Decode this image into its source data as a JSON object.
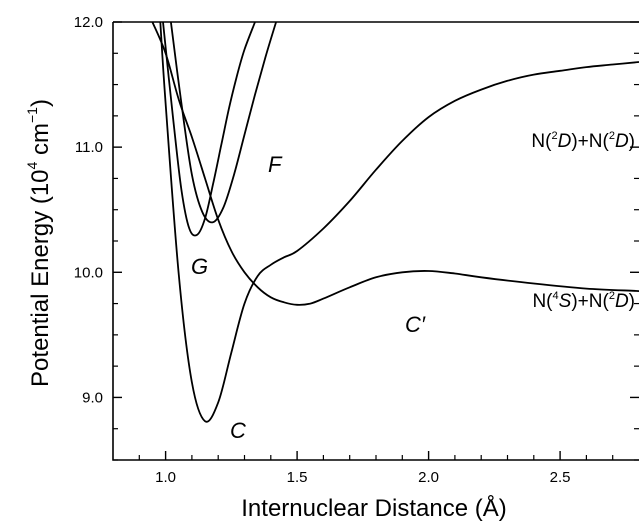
{
  "chart_data": {
    "type": "line",
    "title": "",
    "xlabel": "Internuclear Distance (Å)",
    "ylabel": "Potential Energy (10⁴ cm⁻¹)",
    "xlim": [
      0.8,
      2.8
    ],
    "ylim": [
      8.5,
      12.0
    ],
    "x_ticks": [
      "1.0",
      "1.5",
      "2.0",
      "2.5"
    ],
    "y_ticks": [
      "9.0",
      "10.0",
      "11.0",
      "12.0"
    ],
    "grid": false,
    "legend": "none",
    "series": [
      {
        "name": "C",
        "x": [
          0.98,
          1.0,
          1.05,
          1.1,
          1.15,
          1.2,
          1.25,
          1.3,
          1.35,
          1.4,
          1.45,
          1.5,
          1.6,
          1.7,
          1.8,
          1.9,
          2.0,
          2.1,
          2.2,
          2.3,
          2.4,
          2.5,
          2.6,
          2.7,
          2.8
        ],
        "y": [
          12.0,
          11.35,
          9.98,
          9.12,
          8.81,
          8.96,
          9.36,
          9.75,
          9.97,
          10.06,
          10.12,
          10.17,
          10.35,
          10.57,
          10.82,
          11.05,
          11.24,
          11.37,
          11.46,
          11.53,
          11.58,
          11.61,
          11.64,
          11.66,
          11.68
        ]
      },
      {
        "name": "C′",
        "x": [
          0.95,
          1.0,
          1.05,
          1.1,
          1.15,
          1.2,
          1.25,
          1.3,
          1.35,
          1.4,
          1.45,
          1.5,
          1.55,
          1.6,
          1.7,
          1.8,
          1.9,
          2.0,
          2.1,
          2.2,
          2.4,
          2.6,
          2.8
        ],
        "y": [
          12.0,
          11.75,
          11.38,
          11.08,
          10.75,
          10.42,
          10.17,
          10.0,
          9.88,
          9.8,
          9.76,
          9.74,
          9.75,
          9.79,
          9.88,
          9.96,
          10.0,
          10.01,
          9.99,
          9.96,
          9.91,
          9.87,
          9.85
        ]
      },
      {
        "name": "G",
        "x": [
          0.99,
          1.03,
          1.06,
          1.09,
          1.12,
          1.15,
          1.18,
          1.21,
          1.24,
          1.27,
          1.3,
          1.34
        ],
        "y": [
          12.0,
          11.2,
          10.66,
          10.35,
          10.3,
          10.43,
          10.7,
          11.0,
          11.3,
          11.56,
          11.78,
          12.0
        ]
      },
      {
        "name": "F",
        "x": [
          1.02,
          1.06,
          1.1,
          1.14,
          1.18,
          1.22,
          1.26,
          1.3,
          1.34,
          1.38,
          1.42
        ],
        "y": [
          12.0,
          11.35,
          10.78,
          10.48,
          10.4,
          10.52,
          10.78,
          11.1,
          11.42,
          11.72,
          12.0
        ]
      }
    ],
    "annotations": {
      "c": "C",
      "c_prime": "C′",
      "g": "G",
      "f": "F",
      "upper_asymptote": "N(²D)+N(²D)",
      "lower_asymptote": "N(⁴S)+N(²D)"
    }
  }
}
